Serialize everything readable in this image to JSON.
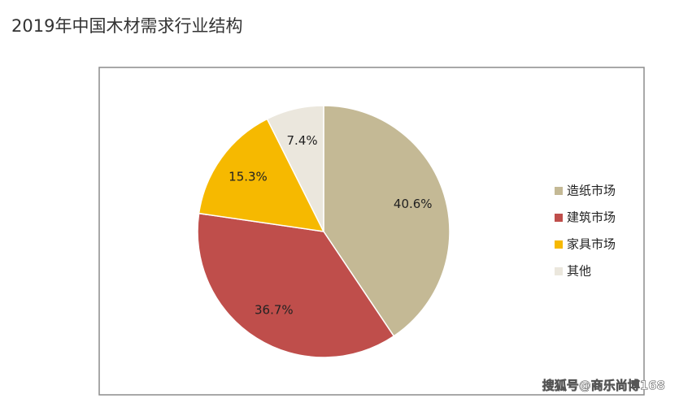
{
  "chart_data": {
    "type": "pie",
    "title": "2019年中国木材需求行业结构",
    "categories": [
      "造纸市场",
      "建筑市场",
      "家具市场",
      "其他"
    ],
    "values": [
      40.6,
      36.7,
      15.3,
      7.4
    ],
    "value_labels": [
      "40.6%",
      "36.7%",
      "15.3%",
      "7.4%"
    ],
    "colors": [
      "#c4b995",
      "#bf4e4b",
      "#f6b900",
      "#ebe7dd"
    ],
    "legend": "right",
    "source": "搜狐号@商乐尚博168"
  }
}
